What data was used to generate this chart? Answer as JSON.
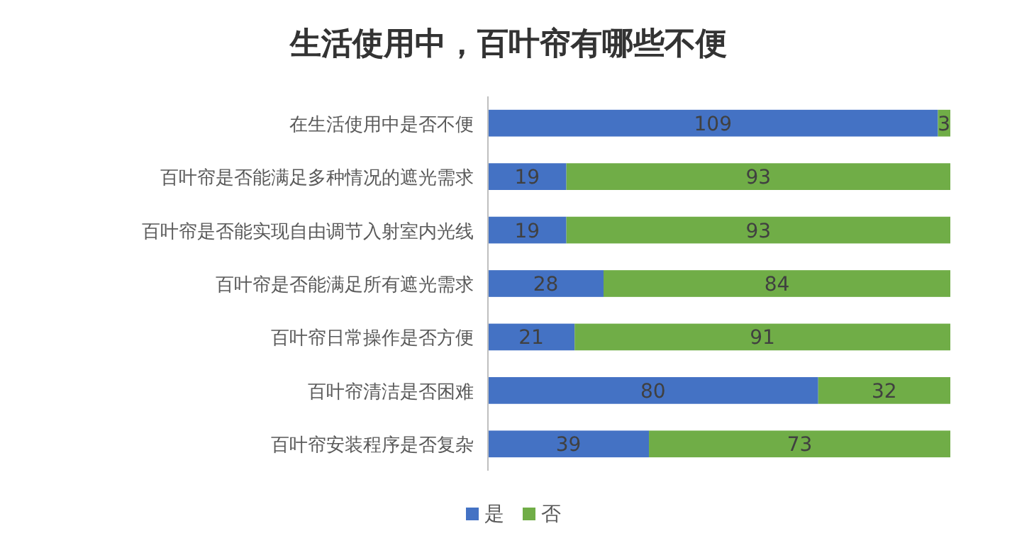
{
  "chart_data": {
    "type": "bar",
    "title": "生活使用中，百叶帘有哪些不便",
    "orientation": "horizontal",
    "stacked": true,
    "data_labels": true,
    "legend": "bottom",
    "categories": [
      "在生活使用中是否不便",
      "百叶帘是否能满足多种情况的遮光需求",
      "百叶帘是否能实现自由调节入射室内光线",
      "百叶帘是否能满足所有遮光需求",
      "百叶帘日常操作是否方便",
      "百叶帘清洁是否困难",
      "百叶帘安装程序是否复杂"
    ],
    "series": [
      {
        "name": "是",
        "color": "#4472c4",
        "values": [
          109,
          19,
          19,
          28,
          21,
          80,
          39
        ]
      },
      {
        "name": "否",
        "color": "#70ad47",
        "values": [
          3,
          93,
          93,
          84,
          91,
          32,
          73
        ]
      }
    ]
  }
}
